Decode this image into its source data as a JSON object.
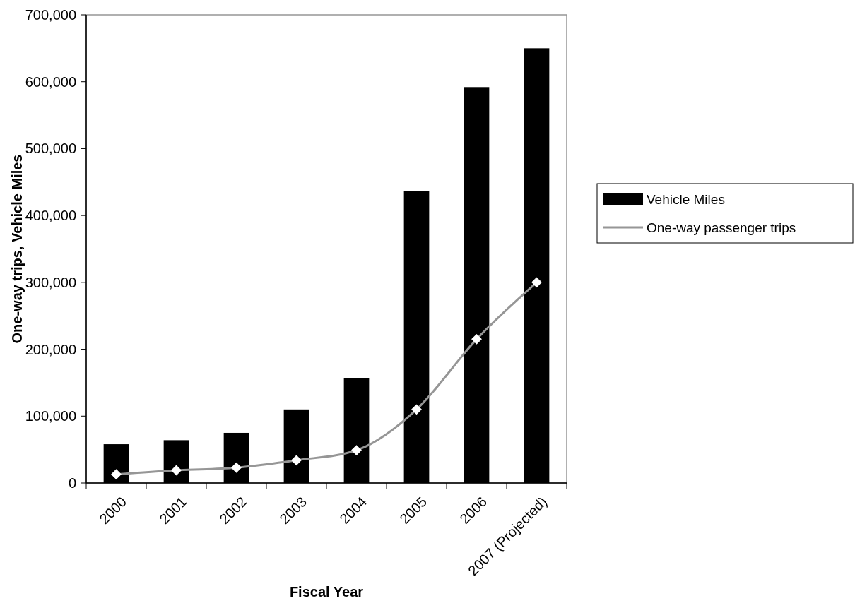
{
  "chart_data": {
    "type": "bar",
    "xlabel": "Fiscal Year",
    "ylabel": "One-way trips, Vehicle Miles",
    "categories": [
      "2000",
      "2001",
      "2002",
      "2003",
      "2004",
      "2005",
      "2006",
      "2007 (Projected)"
    ],
    "series": [
      {
        "name": "Vehicle Miles",
        "color": "#000000",
        "values": [
          58000,
          64000,
          75000,
          110000,
          157000,
          437000,
          592000,
          650000
        ]
      },
      {
        "name": "One-way passenger trips",
        "type": "line",
        "color": "#969696",
        "marker": "diamond",
        "values": [
          13000,
          19000,
          23000,
          34000,
          49000,
          110000,
          215000,
          300000
        ]
      }
    ],
    "ylim": [
      0,
      700000
    ],
    "yticks": [
      {
        "value": 0,
        "label": "0"
      },
      {
        "value": 100000,
        "label": "100,000"
      },
      {
        "value": 200000,
        "label": "200,000"
      },
      {
        "value": 300000,
        "label": "300,000"
      },
      {
        "value": 400000,
        "label": "400,000"
      },
      {
        "value": 500000,
        "label": "500,000"
      },
      {
        "value": 600000,
        "label": "600,000"
      },
      {
        "value": 700000,
        "label": "700,000"
      }
    ],
    "legend": "right"
  }
}
